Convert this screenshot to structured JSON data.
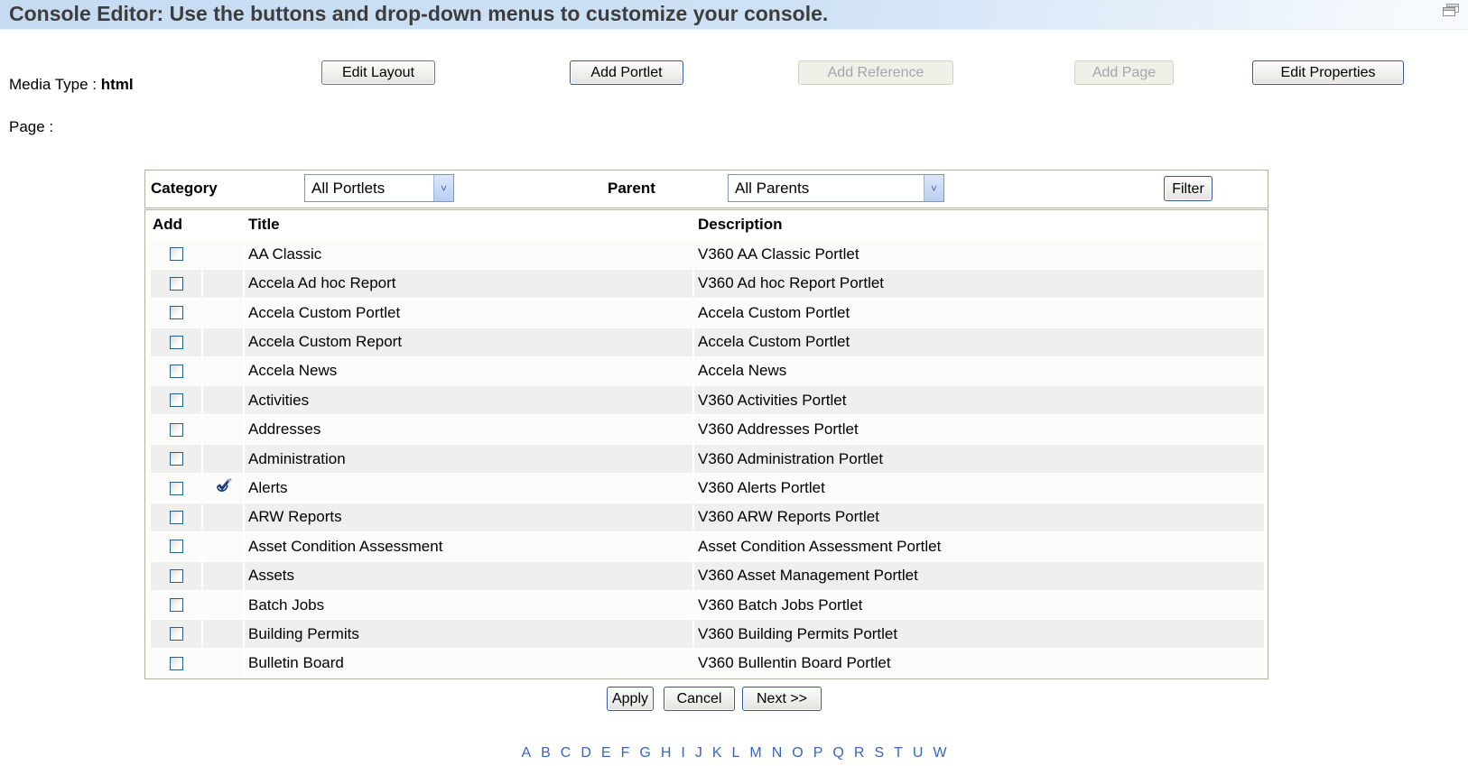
{
  "header": {
    "title": "Console Editor: Use the buttons and drop-down menus to customize your console."
  },
  "toolbar": {
    "media_type_label": "Media Type :",
    "media_type_value": "html",
    "page_label": "Page :",
    "buttons": [
      {
        "label": "Edit Layout",
        "enabled": true
      },
      {
        "label": "Add Portlet",
        "enabled": true
      },
      {
        "label": "Add Reference",
        "enabled": false
      },
      {
        "label": "Add Page",
        "enabled": false
      },
      {
        "label": "Edit Properties",
        "enabled": true
      }
    ]
  },
  "filter_bar": {
    "category_label": "Category",
    "category_value": "All Portlets",
    "parent_label": "Parent",
    "parent_value": "All Parents",
    "filter_button": "Filter"
  },
  "table": {
    "columns": {
      "add": "Add",
      "title": "Title",
      "description": "Description"
    },
    "rows": [
      {
        "title": "AA Classic",
        "description": "V360 AA Classic Portlet",
        "checked": false,
        "flagged": false
      },
      {
        "title": "Accela Ad hoc Report",
        "description": "V360 Ad hoc Report Portlet",
        "checked": false,
        "flagged": false
      },
      {
        "title": "Accela Custom Portlet",
        "description": "Accela Custom Portlet",
        "checked": false,
        "flagged": false
      },
      {
        "title": "Accela Custom Report",
        "description": "Accela Custom Portlet",
        "checked": false,
        "flagged": false
      },
      {
        "title": "Accela News",
        "description": "Accela News",
        "checked": false,
        "flagged": false
      },
      {
        "title": "Activities",
        "description": "V360 Activities Portlet",
        "checked": false,
        "flagged": false
      },
      {
        "title": "Addresses",
        "description": "V360 Addresses Portlet",
        "checked": false,
        "flagged": false
      },
      {
        "title": "Administration",
        "description": "V360 Administration Portlet",
        "checked": false,
        "flagged": false
      },
      {
        "title": "Alerts",
        "description": "V360 Alerts Portlet",
        "checked": false,
        "flagged": true
      },
      {
        "title": "ARW Reports",
        "description": "V360 ARW Reports Portlet",
        "checked": false,
        "flagged": false
      },
      {
        "title": "Asset Condition Assessment",
        "description": "Asset Condition Assessment Portlet",
        "checked": false,
        "flagged": false
      },
      {
        "title": "Assets",
        "description": "V360 Asset Management Portlet",
        "checked": false,
        "flagged": false
      },
      {
        "title": "Batch Jobs",
        "description": "V360 Batch Jobs Portlet",
        "checked": false,
        "flagged": false
      },
      {
        "title": "Building Permits",
        "description": "V360 Building Permits Portlet",
        "checked": false,
        "flagged": false
      },
      {
        "title": "Bulletin Board",
        "description": "V360 Bullentin Board Portlet",
        "checked": false,
        "flagged": false
      }
    ]
  },
  "footer": {
    "buttons": [
      "Apply",
      "Cancel",
      "Next >>"
    ]
  },
  "alphabet": [
    "A",
    "B",
    "C",
    "D",
    "E",
    "F",
    "G",
    "H",
    "I",
    "J",
    "K",
    "L",
    "M",
    "N",
    "O",
    "P",
    "Q",
    "R",
    "S",
    "T",
    "U",
    "W"
  ],
  "colors": {
    "header-text": "#3d3d3d",
    "link-blue": "#3465c0",
    "border-tan": "#b3b09c",
    "stripe-light": "#fbfbfa",
    "stripe-dark": "#efefee",
    "btn-border-blue": "#35569b",
    "disabled-text": "#a5a5a5",
    "check-navy": "#1c3f7d"
  }
}
